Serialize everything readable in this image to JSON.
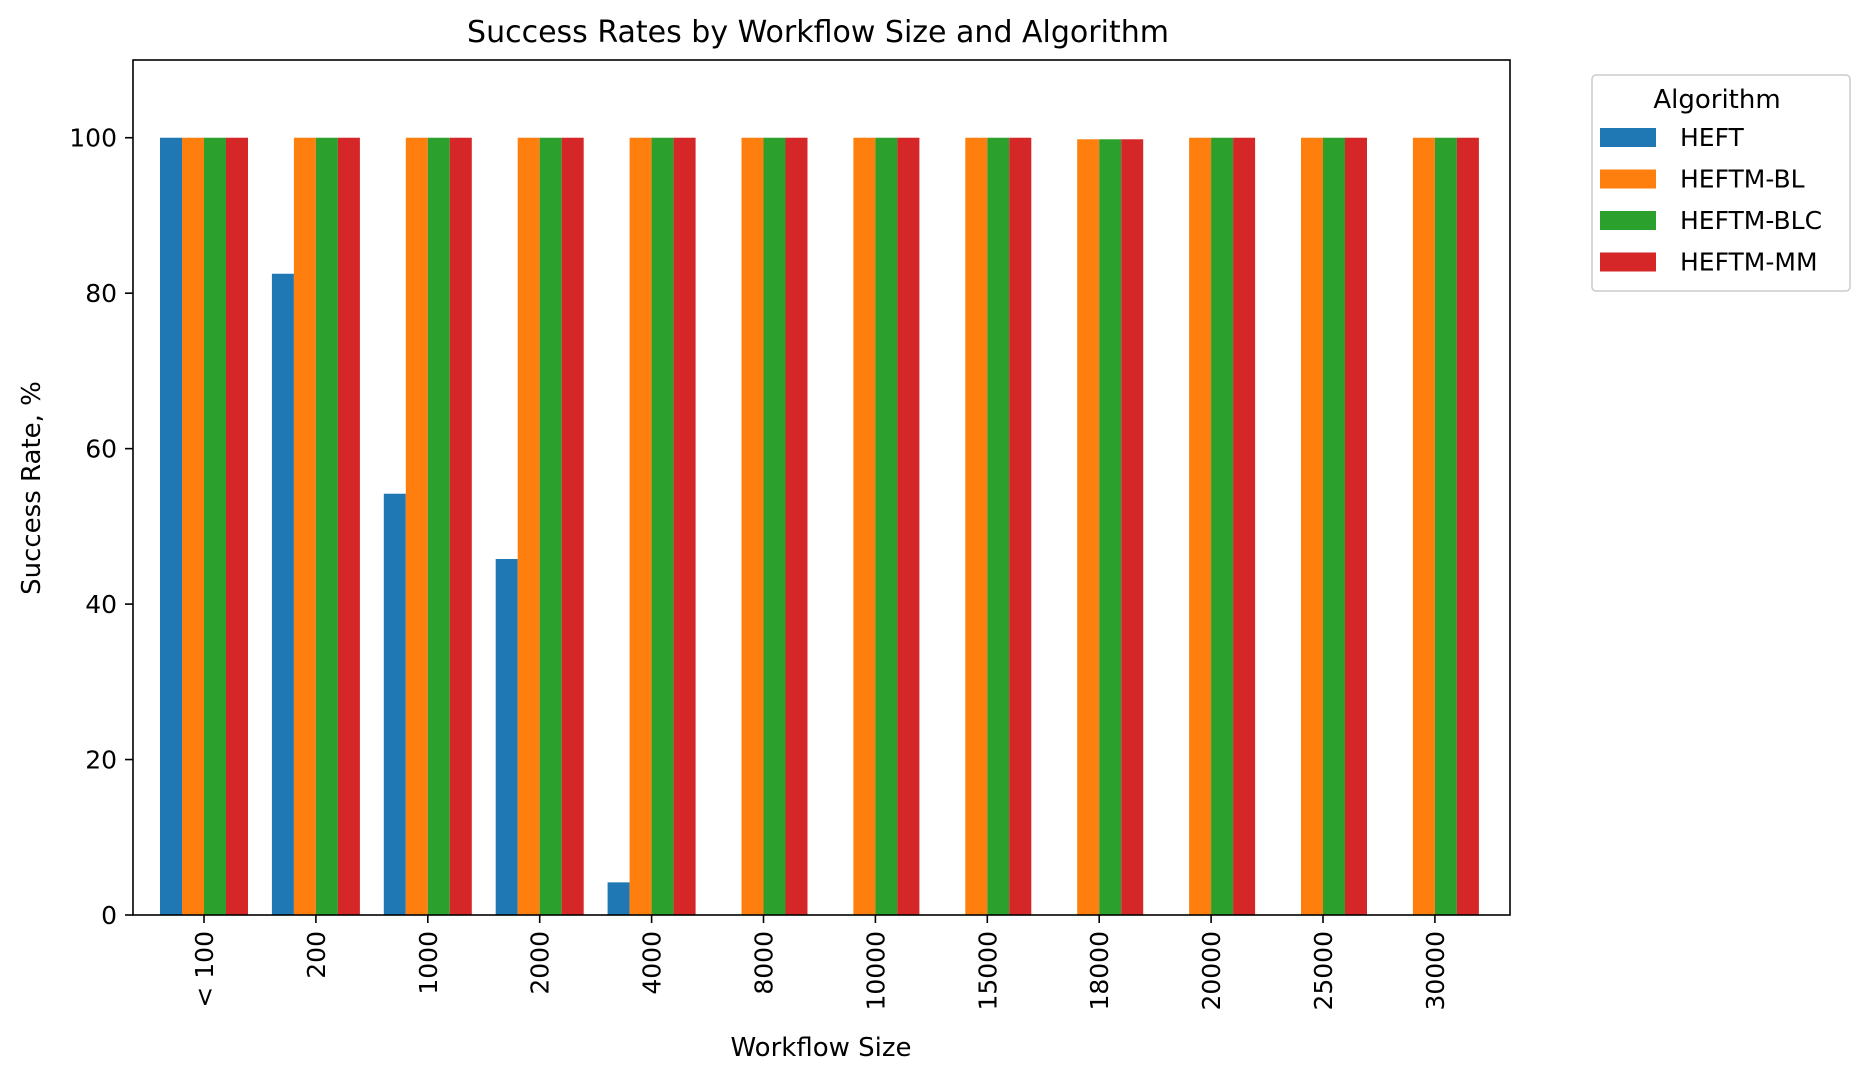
{
  "chart_data": {
    "type": "bar",
    "title": "Success Rates by Workflow Size and Algorithm",
    "xlabel": "Workflow Size",
    "ylabel": "Success Rate, %",
    "ylim": [
      0,
      110
    ],
    "yticks": [
      0,
      20,
      40,
      60,
      80,
      100
    ],
    "categories": [
      "< 100",
      "200",
      "1000",
      "2000",
      "4000",
      "8000",
      "10000",
      "15000",
      "18000",
      "20000",
      "25000",
      "30000"
    ],
    "legend": {
      "title": "Algorithm",
      "placement": "outside-right-top"
    },
    "grid": false,
    "series": [
      {
        "name": "HEFT",
        "color": "#1f77b4",
        "values": [
          100,
          82.5,
          54.2,
          45.8,
          4.2,
          0,
          0,
          0,
          0,
          0,
          0,
          0
        ]
      },
      {
        "name": "HEFTM-BL",
        "color": "#ff7f0e",
        "values": [
          100,
          100,
          100,
          100,
          100,
          100,
          100,
          100,
          99.8,
          100,
          100,
          100
        ]
      },
      {
        "name": "HEFTM-BLC",
        "color": "#2ca02c",
        "values": [
          100,
          100,
          100,
          100,
          100,
          100,
          100,
          100,
          99.8,
          100,
          100,
          100
        ]
      },
      {
        "name": "HEFTM-MM",
        "color": "#d62728",
        "values": [
          100,
          100,
          100,
          100,
          100,
          100,
          100,
          100,
          99.8,
          100,
          100,
          100
        ]
      }
    ]
  }
}
